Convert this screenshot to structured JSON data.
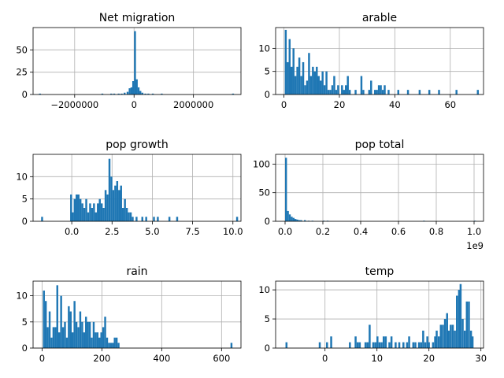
{
  "chart_data": [
    {
      "type": "bar",
      "title": "Net migration",
      "xlim": [
        -3400000,
        3600000
      ],
      "ylim": [
        0,
        75
      ],
      "xticks": [
        -2000000,
        0,
        2000000
      ],
      "xtick_labels": [
        "−2000000",
        "0",
        "2000000"
      ],
      "yticks": [
        0,
        25,
        50
      ],
      "ytick_labels": [
        "0",
        "25",
        "50"
      ],
      "grid": true,
      "bin_width": 64000,
      "bins": [
        [
          -3200000,
          1
        ],
        [
          -1100000,
          1
        ],
        [
          -800000,
          1
        ],
        [
          -700000,
          1
        ],
        [
          -550000,
          1
        ],
        [
          -450000,
          1
        ],
        [
          -350000,
          2
        ],
        [
          -250000,
          3
        ],
        [
          -180000,
          7
        ],
        [
          -120000,
          8
        ],
        [
          -60000,
          15
        ],
        [
          0,
          71
        ],
        [
          60000,
          17
        ],
        [
          120000,
          8
        ],
        [
          180000,
          4
        ],
        [
          250000,
          2
        ],
        [
          350000,
          1
        ],
        [
          450000,
          1
        ],
        [
          600000,
          1
        ],
        [
          900000,
          1
        ],
        [
          3300000,
          1
        ]
      ]
    },
    {
      "type": "bar",
      "title": "arable",
      "xlim": [
        -3,
        72
      ],
      "ylim": [
        0,
        14.5
      ],
      "xticks": [
        0,
        20,
        40,
        60
      ],
      "xtick_labels": [
        "0",
        "20",
        "40",
        "60"
      ],
      "yticks": [
        0,
        5,
        10
      ],
      "ytick_labels": [
        "0",
        "5",
        "10"
      ],
      "grid": true,
      "bin_width": 0.7,
      "bins": [
        [
          0.3,
          14
        ],
        [
          1.0,
          7
        ],
        [
          1.7,
          12
        ],
        [
          2.4,
          6
        ],
        [
          3.1,
          10
        ],
        [
          3.8,
          4
        ],
        [
          4.5,
          6
        ],
        [
          5.2,
          8
        ],
        [
          5.9,
          4
        ],
        [
          6.6,
          7
        ],
        [
          7.3,
          2
        ],
        [
          8.0,
          3
        ],
        [
          8.7,
          9
        ],
        [
          9.4,
          4
        ],
        [
          10.1,
          6
        ],
        [
          10.8,
          5
        ],
        [
          11.5,
          6
        ],
        [
          12.2,
          4
        ],
        [
          12.9,
          3
        ],
        [
          13.6,
          5
        ],
        [
          14.3,
          2
        ],
        [
          15.0,
          5
        ],
        [
          15.7,
          1
        ],
        [
          16.4,
          1
        ],
        [
          17.1,
          2
        ],
        [
          17.8,
          4
        ],
        [
          18.5,
          1
        ],
        [
          19.2,
          2
        ],
        [
          20.6,
          2
        ],
        [
          21.3,
          1
        ],
        [
          22.0,
          2
        ],
        [
          22.7,
          4
        ],
        [
          23.4,
          1
        ],
        [
          25.5,
          1
        ],
        [
          27.6,
          4
        ],
        [
          28.3,
          1
        ],
        [
          30.4,
          1
        ],
        [
          31.1,
          3
        ],
        [
          32.5,
          1
        ],
        [
          33.2,
          1
        ],
        [
          33.9,
          2
        ],
        [
          34.6,
          2
        ],
        [
          35.3,
          1
        ],
        [
          36.0,
          2
        ],
        [
          37.4,
          1
        ],
        [
          40.9,
          1
        ],
        [
          44.4,
          1
        ],
        [
          48.6,
          1
        ],
        [
          52.1,
          1
        ],
        [
          55.6,
          1
        ],
        [
          61.9,
          1
        ],
        [
          69.6,
          1
        ]
      ]
    },
    {
      "type": "bar",
      "title": "pop growth",
      "xlim": [
        -2.4,
        10.5
      ],
      "ylim": [
        0,
        15
      ],
      "xticks": [
        0.0,
        2.5,
        5.0,
        7.5,
        10.0
      ],
      "xtick_labels": [
        "0.0",
        "2.5",
        "5.0",
        "7.5",
        "10.0"
      ],
      "yticks": [
        0,
        5,
        10
      ],
      "ytick_labels": [
        "0",
        "5",
        "10"
      ],
      "grid": true,
      "bin_width": 0.12,
      "bins": [
        [
          -1.9,
          1
        ],
        [
          -0.1,
          6
        ],
        [
          0.0,
          2
        ],
        [
          0.12,
          5
        ],
        [
          0.24,
          6
        ],
        [
          0.36,
          6
        ],
        [
          0.48,
          5
        ],
        [
          0.6,
          4
        ],
        [
          0.72,
          3
        ],
        [
          0.84,
          5
        ],
        [
          0.96,
          2
        ],
        [
          1.08,
          4
        ],
        [
          1.2,
          3
        ],
        [
          1.32,
          4
        ],
        [
          1.44,
          2
        ],
        [
          1.56,
          4
        ],
        [
          1.68,
          5
        ],
        [
          1.8,
          4
        ],
        [
          1.92,
          3
        ],
        [
          2.04,
          7
        ],
        [
          2.16,
          6
        ],
        [
          2.28,
          14
        ],
        [
          2.4,
          10
        ],
        [
          2.52,
          7
        ],
        [
          2.64,
          8
        ],
        [
          2.76,
          9
        ],
        [
          2.88,
          7
        ],
        [
          3.0,
          8
        ],
        [
          3.12,
          3
        ],
        [
          3.24,
          5
        ],
        [
          3.36,
          3
        ],
        [
          3.48,
          2
        ],
        [
          3.6,
          2
        ],
        [
          3.72,
          1
        ],
        [
          3.96,
          1
        ],
        [
          4.32,
          1
        ],
        [
          4.56,
          1
        ],
        [
          5.04,
          1
        ],
        [
          5.28,
          1
        ],
        [
          6.0,
          1
        ],
        [
          6.48,
          1
        ],
        [
          10.2,
          1
        ]
      ]
    },
    {
      "type": "bar",
      "title": "pop total",
      "xlim": [
        -0.05,
        1.05
      ],
      "ylim": [
        0,
        117
      ],
      "xticks": [
        0.0,
        0.2,
        0.4,
        0.6,
        0.8,
        1.0
      ],
      "xtick_labels": [
        "0.0",
        "0.2",
        "0.4",
        "0.6",
        "0.8",
        "1.0"
      ],
      "yticks": [
        0,
        50,
        100
      ],
      "ytick_labels": [
        "0",
        "50",
        "100"
      ],
      "grid": true,
      "x_offset_label": "1e9",
      "bin_width": 0.01,
      "bins": [
        [
          0.0,
          111
        ],
        [
          0.01,
          18
        ],
        [
          0.02,
          12
        ],
        [
          0.03,
          8
        ],
        [
          0.04,
          6
        ],
        [
          0.05,
          4
        ],
        [
          0.06,
          3
        ],
        [
          0.07,
          2
        ],
        [
          0.08,
          2
        ],
        [
          0.1,
          2
        ],
        [
          0.12,
          1
        ],
        [
          0.14,
          1
        ],
        [
          0.2,
          1
        ],
        [
          0.22,
          1
        ],
        [
          0.73,
          1
        ],
        [
          1.0,
          1
        ]
      ]
    },
    {
      "type": "bar",
      "title": "rain",
      "xlim": [
        -30,
        665
      ],
      "ylim": [
        0,
        12.8
      ],
      "xticks": [
        0,
        200,
        400,
        600
      ],
      "xtick_labels": [
        "0",
        "200",
        "400",
        "600"
      ],
      "yticks": [
        0,
        5,
        10
      ],
      "ytick_labels": [
        "0",
        "5",
        "10"
      ],
      "grid": true,
      "bin_width": 6.4,
      "bins": [
        [
          3,
          11
        ],
        [
          9.4,
          9
        ],
        [
          15.8,
          4
        ],
        [
          22.2,
          7
        ],
        [
          28.6,
          2
        ],
        [
          35,
          4
        ],
        [
          41.4,
          4
        ],
        [
          47.8,
          12
        ],
        [
          54.2,
          3
        ],
        [
          60.6,
          10
        ],
        [
          67,
          4
        ],
        [
          73.4,
          5
        ],
        [
          79.8,
          2
        ],
        [
          86.2,
          8
        ],
        [
          92.6,
          7
        ],
        [
          99,
          3
        ],
        [
          105.4,
          9
        ],
        [
          111.8,
          5
        ],
        [
          118.2,
          4
        ],
        [
          124.6,
          7
        ],
        [
          131,
          5
        ],
        [
          137.4,
          3
        ],
        [
          143.8,
          6
        ],
        [
          150.2,
          5
        ],
        [
          156.6,
          5
        ],
        [
          163,
          2
        ],
        [
          169.4,
          5
        ],
        [
          175.8,
          3
        ],
        [
          182.2,
          3
        ],
        [
          188.6,
          2
        ],
        [
          195,
          3
        ],
        [
          201.4,
          4
        ],
        [
          207.8,
          6
        ],
        [
          214.2,
          2
        ],
        [
          220.6,
          1
        ],
        [
          227,
          1
        ],
        [
          233.4,
          1
        ],
        [
          239.8,
          2
        ],
        [
          246.2,
          2
        ],
        [
          252.6,
          1
        ],
        [
          630,
          1
        ]
      ]
    },
    {
      "type": "bar",
      "title": "temp",
      "xlim": [
        -9.5,
        30.5
      ],
      "ylim": [
        0,
        11.5
      ],
      "xticks": [
        0,
        10,
        20,
        30
      ],
      "xtick_labels": [
        "0",
        "10",
        "20",
        "30"
      ],
      "yticks": [
        0,
        5,
        10
      ],
      "ytick_labels": [
        "0",
        "5",
        "10"
      ],
      "grid": true,
      "bin_width": 0.38,
      "bins": [
        [
          -7.6,
          1
        ],
        [
          -1.2,
          1
        ],
        [
          0.2,
          1
        ],
        [
          1.0,
          2
        ],
        [
          4.6,
          1
        ],
        [
          5.7,
          2
        ],
        [
          6.1,
          1
        ],
        [
          6.5,
          1
        ],
        [
          7.6,
          1
        ],
        [
          8.0,
          1
        ],
        [
          8.4,
          4
        ],
        [
          9.1,
          1
        ],
        [
          9.5,
          1
        ],
        [
          9.9,
          2
        ],
        [
          10.3,
          1
        ],
        [
          10.7,
          1
        ],
        [
          11.1,
          2
        ],
        [
          11.5,
          2
        ],
        [
          12.2,
          1
        ],
        [
          12.6,
          2
        ],
        [
          13.4,
          1
        ],
        [
          14.1,
          1
        ],
        [
          14.9,
          1
        ],
        [
          15.6,
          1
        ],
        [
          16.0,
          2
        ],
        [
          16.8,
          1
        ],
        [
          17.2,
          1
        ],
        [
          17.9,
          1
        ],
        [
          18.3,
          1
        ],
        [
          18.7,
          3
        ],
        [
          19.1,
          1
        ],
        [
          19.5,
          2
        ],
        [
          19.8,
          1
        ],
        [
          20.6,
          1
        ],
        [
          21.0,
          2
        ],
        [
          21.3,
          3
        ],
        [
          21.7,
          2
        ],
        [
          22.1,
          4
        ],
        [
          22.5,
          4
        ],
        [
          22.9,
          5
        ],
        [
          23.3,
          6
        ],
        [
          23.6,
          3
        ],
        [
          24.0,
          4
        ],
        [
          24.4,
          4
        ],
        [
          24.8,
          3
        ],
        [
          25.2,
          9
        ],
        [
          25.6,
          10
        ],
        [
          25.9,
          11
        ],
        [
          26.3,
          5
        ],
        [
          26.7,
          3
        ],
        [
          27.1,
          8
        ],
        [
          27.5,
          8
        ],
        [
          27.9,
          3
        ],
        [
          28.2,
          2
        ]
      ]
    }
  ]
}
